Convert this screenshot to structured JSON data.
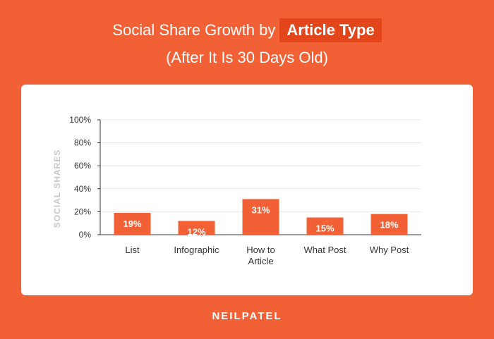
{
  "title": {
    "prefix": "Social Share Growth by",
    "highlight": "Article Type",
    "subtitle": "(After It Is 30 Days Old)"
  },
  "brand": "NEILPATEL",
  "colors": {
    "background": "#F26035",
    "title_highlight": "#E3461A",
    "bar": "#F26035",
    "bar_label": "#ffffff",
    "axis": "#333333",
    "grid": "#e6e6e6",
    "ylabel": "#c8c8c8"
  },
  "chart_data": {
    "type": "bar",
    "categories": [
      [
        "List"
      ],
      [
        "Infographic"
      ],
      [
        "How to",
        "Article"
      ],
      [
        "What Post"
      ],
      [
        "Why Post"
      ]
    ],
    "values": [
      19,
      12,
      31,
      15,
      18
    ],
    "data_labels": [
      "19%",
      "12%",
      "31%",
      "15%",
      "18%"
    ],
    "ylabel": "SOCIAL SHARES",
    "xlabel": "",
    "ylim": [
      0,
      100
    ],
    "yticks": [
      0,
      20,
      40,
      60,
      80,
      100
    ],
    "ytick_labels": [
      "0%",
      "20%",
      "40%",
      "60%",
      "80%",
      "100%"
    ],
    "grid": true
  }
}
